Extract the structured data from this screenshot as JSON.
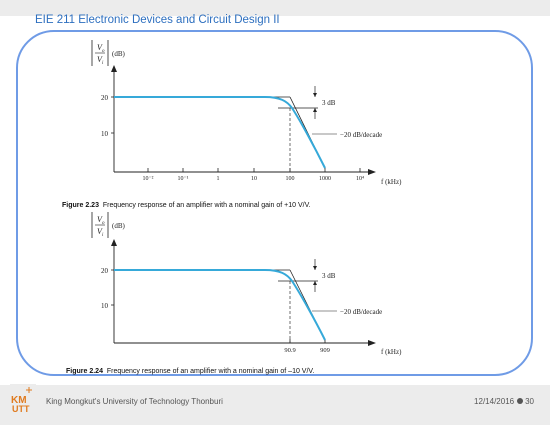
{
  "slide": {
    "title": "EIE 211 Electronic Devices and Circuit Design II",
    "footer": {
      "institution": "King Mongkut's University of Technology Thonburi",
      "date": "12/14/2016",
      "page": "30"
    },
    "logo_text": "KMUTT"
  },
  "figures": [
    {
      "caption_label": "Figure 2.23",
      "caption_text": "Frequency response of an amplifier with a nominal gain of +10 V/V."
    },
    {
      "caption_label": "Figure 2.24",
      "caption_text": "Frequency response of an amplifier with a nominal gain of –10 V/V."
    }
  ],
  "chart_data": [
    {
      "type": "line",
      "title": "",
      "ylabel_num": "V",
      "ylabel_num_sub": "o",
      "ylabel_den": "V",
      "ylabel_den_sub": "i",
      "ylabel_unit": "(dB)",
      "xlabel": "f (kHz)",
      "x_tick_labels": [
        "10⁻²",
        "10⁻¹",
        "1",
        "10",
        "100",
        "1000",
        "10⁴"
      ],
      "y_tick_labels": [
        "20",
        "10"
      ],
      "annotations": [
        "3 dB",
        "−20 dB/decade"
      ],
      "series": [
        {
          "x": [
            0.01,
            10,
            50,
            100,
            200,
            500,
            1000
          ],
          "y": [
            20,
            20,
            19.8,
            17,
            13,
            6,
            0
          ]
        }
      ],
      "color": "#36a9d9"
    },
    {
      "type": "line",
      "title": "",
      "ylabel_num": "V",
      "ylabel_num_sub": "o",
      "ylabel_den": "V",
      "ylabel_den_sub": "i",
      "ylabel_unit": "(dB)",
      "xlabel": "f (kHz)",
      "x_tick_labels": [
        "90.9",
        "909"
      ],
      "y_tick_labels": [
        "20",
        "10"
      ],
      "annotations": [
        "3 dB",
        "−20 dB/decade"
      ],
      "series": [
        {
          "x": [
            0.01,
            10,
            45,
            90.9,
            180,
            450,
            909
          ],
          "y": [
            20,
            20,
            19.8,
            17,
            13,
            6,
            0
          ]
        }
      ],
      "color": "#36a9d9"
    }
  ]
}
